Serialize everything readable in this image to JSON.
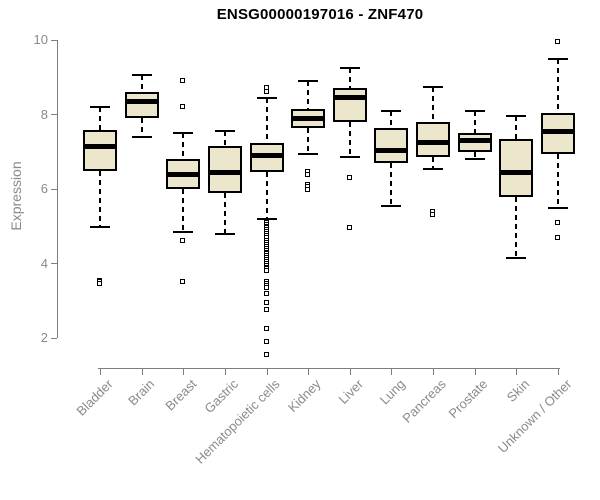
{
  "chart_data": {
    "type": "boxplot",
    "title": "ENSG00000197016 - ZNF470",
    "xlabel": "",
    "ylabel": "Expression",
    "legend": null,
    "grid": false,
    "y_axis": {
      "min": 2,
      "max": 10,
      "ticks": [
        2,
        4,
        6,
        8,
        10
      ]
    },
    "categories": [
      "Bladder",
      "Brain",
      "Breast",
      "Gastric",
      "Hematopoietic cells",
      "Kidney",
      "Liver",
      "Lung",
      "Pancreas",
      "Prostate",
      "Skin",
      "Unknown / Other"
    ],
    "boxes": [
      {
        "category": "Bladder",
        "low": 5.0,
        "q1": 6.5,
        "median": 7.15,
        "q3": 7.6,
        "high": 8.2,
        "outliers": [
          3.55,
          3.5,
          3.45
        ]
      },
      {
        "category": "Brain",
        "low": 7.4,
        "q1": 7.9,
        "median": 8.35,
        "q3": 8.6,
        "high": 9.05,
        "outliers": []
      },
      {
        "category": "Breast",
        "low": 4.85,
        "q1": 6.0,
        "median": 6.4,
        "q3": 6.8,
        "high": 7.5,
        "outliers": [
          8.9,
          8.2,
          4.6,
          3.5
        ]
      },
      {
        "category": "Gastric",
        "low": 4.8,
        "q1": 5.9,
        "median": 6.45,
        "q3": 7.15,
        "high": 7.55,
        "outliers": []
      },
      {
        "category": "Hematopoietic cells",
        "low": 5.2,
        "q1": 6.45,
        "median": 6.9,
        "q3": 7.25,
        "high": 8.45,
        "outliers": [
          8.7,
          8.6,
          5.1,
          5.05,
          5.0,
          4.95,
          4.9,
          4.85,
          4.8,
          4.75,
          4.7,
          4.6,
          4.55,
          4.5,
          4.45,
          4.4,
          4.35,
          4.3,
          4.25,
          4.2,
          4.15,
          4.1,
          4.05,
          4.0,
          3.95,
          3.9,
          3.85,
          3.8,
          3.5,
          3.45,
          3.4,
          3.35,
          3.2,
          2.95,
          2.75,
          2.25,
          1.9,
          1.55
        ]
      },
      {
        "category": "Kidney",
        "low": 6.95,
        "q1": 7.65,
        "median": 7.9,
        "q3": 8.15,
        "high": 8.9,
        "outliers": [
          6.45,
          6.38,
          6.12,
          6.05,
          5.98
        ]
      },
      {
        "category": "Liver",
        "low": 6.85,
        "q1": 7.8,
        "median": 8.45,
        "q3": 8.7,
        "high": 9.25,
        "outliers": [
          6.3,
          4.95
        ]
      },
      {
        "category": "Lung",
        "low": 5.55,
        "q1": 6.7,
        "median": 7.05,
        "q3": 7.65,
        "high": 8.1,
        "outliers": []
      },
      {
        "category": "Pancreas",
        "low": 6.55,
        "q1": 6.85,
        "median": 7.25,
        "q3": 7.8,
        "high": 8.75,
        "outliers": [
          5.4,
          5.3
        ]
      },
      {
        "category": "Prostate",
        "low": 6.8,
        "q1": 7.0,
        "median": 7.3,
        "q3": 7.5,
        "high": 8.1,
        "outliers": []
      },
      {
        "category": "Skin",
        "low": 4.15,
        "q1": 5.8,
        "median": 6.45,
        "q3": 7.35,
        "high": 7.95,
        "outliers": []
      },
      {
        "category": "Unknown / Other",
        "low": 5.5,
        "q1": 6.95,
        "median": 7.55,
        "q3": 8.05,
        "high": 9.5,
        "outliers": [
          9.95,
          5.1,
          4.7
        ]
      }
    ],
    "colors": {
      "box_fill": "#ECE6CD",
      "box_border": "#000000",
      "median": "#000000",
      "axis": "#7f7f7f",
      "text_gray": "#8a8a8a",
      "title": "#000000",
      "background": "#ffffff"
    }
  }
}
